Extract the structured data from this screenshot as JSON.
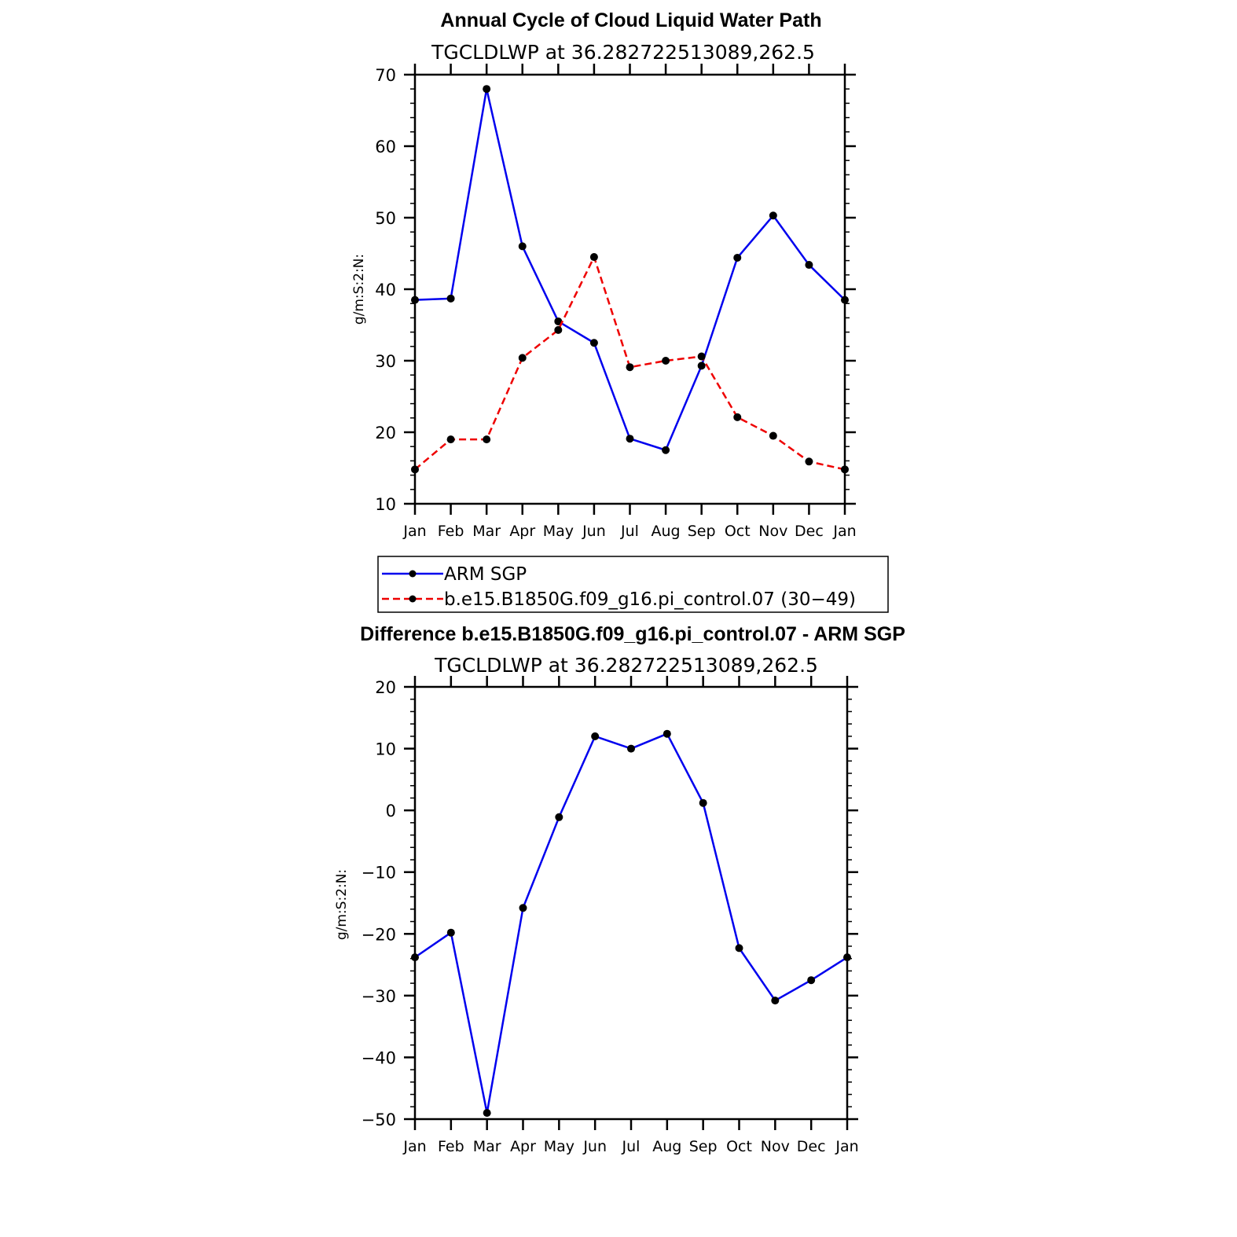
{
  "chart_data": [
    {
      "type": "line",
      "title": "Annual Cycle of Cloud Liquid Water Path",
      "subtitle": "TGCLDLWP  at  36.282722513089,262.5",
      "ylabel": "g/m:S:2:N:",
      "ylim": [
        10,
        70
      ],
      "yticks": [
        "70",
        "60",
        "50",
        "40",
        "30",
        "20",
        "10"
      ],
      "categories": [
        "Jan",
        "Feb",
        "Mar",
        "Apr",
        "May",
        "Jun",
        "Jul",
        "Aug",
        "Sep",
        "Oct",
        "Nov",
        "Dec",
        "Jan"
      ],
      "series": [
        {
          "name": "ARM SGP",
          "color": "#0000ee",
          "dash": "solid",
          "values": [
            38.5,
            38.7,
            68.0,
            46.0,
            35.5,
            32.5,
            19.1,
            17.5,
            29.3,
            44.4,
            50.3,
            43.4,
            38.5
          ]
        },
        {
          "name": "b.e15.B1850G.f09_g16.pi_control.07 (30−49)",
          "color": "#ee0000",
          "dash": "dashed",
          "values": [
            14.8,
            19.0,
            19.0,
            30.4,
            34.3,
            44.5,
            29.1,
            30.0,
            30.6,
            22.1,
            19.5,
            15.9,
            14.8
          ]
        }
      ],
      "legend": {
        "position": "below",
        "entries": [
          "ARM SGP",
          "b.e15.B1850G.f09_g16.pi_control.07 (30−49)"
        ]
      }
    },
    {
      "type": "line",
      "title": "Difference b.e15.B1850G.f09_g16.pi_control.07 - ARM SGP",
      "subtitle": "TGCLDLWP  at  36.282722513089,262.5",
      "ylabel": "g/m:S:2:N:",
      "ylim": [
        -50,
        20
      ],
      "yticks": [
        "20",
        "10",
        "0",
        "−10",
        "−20",
        "−30",
        "−40",
        "−50"
      ],
      "categories": [
        "Jan",
        "Feb",
        "Mar",
        "Apr",
        "May",
        "Jun",
        "Jul",
        "Aug",
        "Sep",
        "Oct",
        "Nov",
        "Dec",
        "Jan"
      ],
      "series": [
        {
          "name": "Difference",
          "color": "#0000ee",
          "dash": "solid",
          "values": [
            -23.8,
            -19.8,
            -49.0,
            -15.8,
            -1.1,
            12.0,
            10.0,
            12.4,
            1.2,
            -22.3,
            -30.8,
            -27.5,
            -23.8
          ]
        }
      ]
    }
  ]
}
